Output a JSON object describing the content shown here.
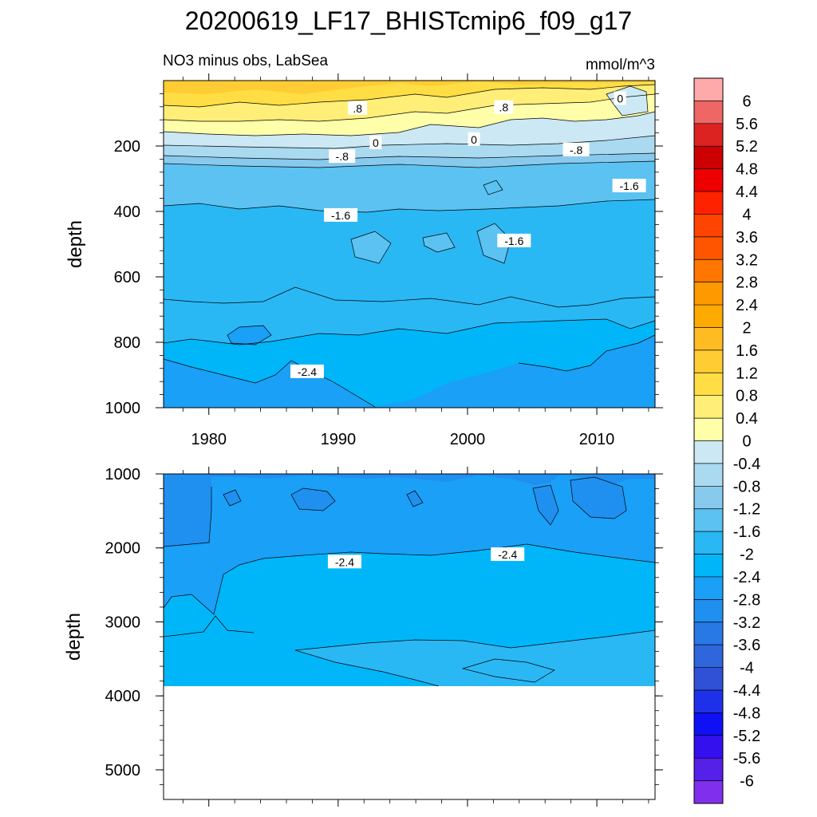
{
  "title": "20200619_LF17_BHISTcmip6_f09_g17",
  "chart_data": [
    {
      "type": "heatmap",
      "subtitle_left": "NO3 minus obs, LabSea",
      "subtitle_right": "mmol/m^3",
      "ylabel": "depth",
      "xlim": [
        1976.5,
        2014.5
      ],
      "ylim": [
        0,
        1000
      ],
      "y_reversed": true,
      "xticks": [
        1980,
        1990,
        2000,
        2010
      ],
      "yticks": [
        200,
        400,
        600,
        800,
        1000
      ],
      "contour_labels": [
        {
          "text": ".8",
          "x": 1991.5,
          "y": 85
        },
        {
          "text": ".8",
          "x": 2002.8,
          "y": 82
        },
        {
          "text": "0",
          "x": 2011.8,
          "y": 55
        },
        {
          "text": "0",
          "x": 1992.9,
          "y": 190
        },
        {
          "text": "0",
          "x": 2000.5,
          "y": 180
        },
        {
          "text": "-.8",
          "x": 1990.3,
          "y": 232
        },
        {
          "text": "-.8",
          "x": 2008.4,
          "y": 212
        },
        {
          "text": "-1.6",
          "x": 1990.2,
          "y": 412
        },
        {
          "text": "-1.6",
          "x": 2003.6,
          "y": 490
        },
        {
          "text": "-1.6",
          "x": 2012.5,
          "y": 322
        },
        {
          "text": "-2.4",
          "x": 1987.6,
          "y": 890
        }
      ]
    },
    {
      "type": "heatmap",
      "ylabel": "depth",
      "xlim": [
        1976.5,
        2014.5
      ],
      "ylim": [
        1000,
        5400
      ],
      "data_max_depth": 3860,
      "y_reversed": true,
      "yticks": [
        1000,
        2000,
        3000,
        4000,
        5000
      ],
      "contour_labels": [
        {
          "text": "-2.4",
          "x": 1990.5,
          "y": 2190
        },
        {
          "text": "-2.4",
          "x": 2003.1,
          "y": 2090
        }
      ]
    }
  ],
  "colorbar": {
    "labels": [
      "6",
      "5.6",
      "5.2",
      "4.8",
      "4.4",
      "4",
      "3.6",
      "3.2",
      "2.8",
      "2.4",
      "2",
      "1.6",
      "1.2",
      "0.8",
      "0.4",
      "0",
      "-0.4",
      "-0.8",
      "-1.2",
      "-1.6",
      "-2",
      "-2.4",
      "-2.8",
      "-3.2",
      "-3.6",
      "-4",
      "-4.4",
      "-4.8",
      "-5.2",
      "-5.6",
      "-6"
    ],
    "colors": [
      "#ffaaaa",
      "#ee6666",
      "#dd2222",
      "#cc0000",
      "#ee0000",
      "#ff2200",
      "#ff4400",
      "#ff5500",
      "#ff7700",
      "#ff9900",
      "#ffaa00",
      "#ffbb22",
      "#ffcc33",
      "#ffdd44",
      "#ffee77",
      "#ffffaa",
      "#cce8f4",
      "#aadaf0",
      "#88caee",
      "#5bc2f2",
      "#2ab8f4",
      "#00b6f8",
      "#1aa0f6",
      "#2090f0",
      "#2878e6",
      "#3066dc",
      "#3050d6",
      "#1e30e8",
      "#1010f4",
      "#3410ee",
      "#5520e8",
      "#8030ec"
    ]
  }
}
